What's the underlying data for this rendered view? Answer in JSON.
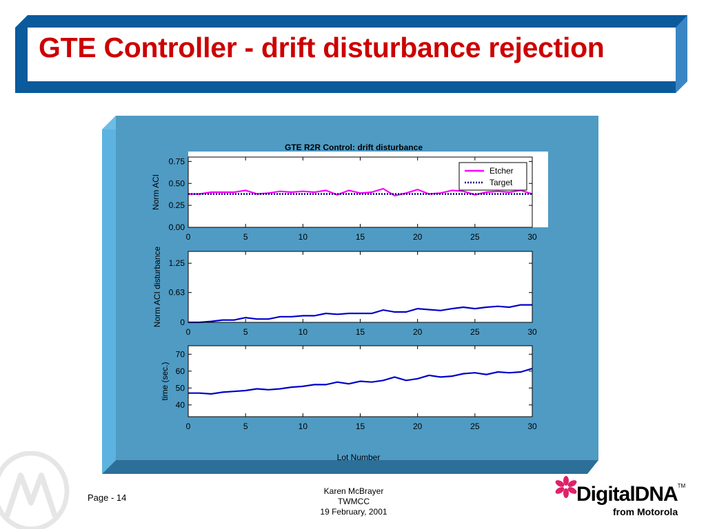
{
  "slide": {
    "title": "GTE Controller - drift disturbance rejection",
    "page_label": "Page - 14",
    "footer": {
      "author": "Karen McBrayer",
      "org": "TWMCC",
      "date": "19 February, 2001"
    },
    "brand": {
      "main": "DigitalDNA",
      "tm": "TM",
      "sub": "from Motorola"
    },
    "colors": {
      "title": "#cc0000",
      "frame_blue": "#0a5a9c",
      "panel_blue": "#4f9bc4",
      "panel_edge_light": "#5cb3e0",
      "panel_edge_dark": "#2c6f98",
      "asterisk": "#e0206a"
    }
  },
  "chart_data": {
    "type": "line",
    "title": "GTE R2R Control: drift disturbance",
    "xlabel": "Lot Number",
    "x": [
      0,
      1,
      2,
      3,
      4,
      5,
      6,
      7,
      8,
      9,
      10,
      11,
      12,
      13,
      14,
      15,
      16,
      17,
      18,
      19,
      20,
      21,
      22,
      23,
      24,
      25,
      26,
      27,
      28,
      29,
      30
    ],
    "x_ticks": [
      "0",
      "5",
      "10",
      "15",
      "20",
      "25",
      "30"
    ],
    "xlim": [
      0,
      30
    ],
    "subplots": [
      {
        "ylabel": "Norm ACI",
        "ylim": [
          0,
          0.8
        ],
        "y_ticks": [
          "0.00",
          "0.25",
          "0.50",
          "0.75"
        ],
        "y_tick_values": [
          0,
          0.25,
          0.5,
          0.75
        ],
        "legend": "top-right",
        "series": [
          {
            "name": "Etcher",
            "color": "#ff00ff",
            "style": "solid",
            "values": [
              0.38,
              0.38,
              0.4,
              0.4,
              0.4,
              0.42,
              0.38,
              0.39,
              0.41,
              0.4,
              0.41,
              0.4,
              0.42,
              0.37,
              0.42,
              0.39,
              0.4,
              0.44,
              0.36,
              0.39,
              0.43,
              0.38,
              0.39,
              0.42,
              0.41,
              0.37,
              0.4,
              0.41,
              0.4,
              0.42,
              0.38
            ]
          },
          {
            "name": "Target",
            "color": "#000080",
            "style": "dotted",
            "values": [
              0.38,
              0.38,
              0.38,
              0.38,
              0.38,
              0.38,
              0.38,
              0.38,
              0.38,
              0.38,
              0.38,
              0.38,
              0.38,
              0.38,
              0.38,
              0.38,
              0.38,
              0.38,
              0.38,
              0.38,
              0.38,
              0.38,
              0.38,
              0.38,
              0.38,
              0.38,
              0.38,
              0.38,
              0.38,
              0.38,
              0.38
            ]
          }
        ]
      },
      {
        "ylabel": "Norm ACI disturbance",
        "ylim": [
          0,
          1.5
        ],
        "y_ticks": [
          "0",
          "0.63",
          "1.25"
        ],
        "y_tick_values": [
          0,
          0.63,
          1.25
        ],
        "series": [
          {
            "color": "#0000cc",
            "style": "solid",
            "values": [
              0.0,
              0.0,
              0.02,
              0.05,
              0.05,
              0.1,
              0.07,
              0.07,
              0.12,
              0.12,
              0.14,
              0.14,
              0.19,
              0.17,
              0.19,
              0.19,
              0.19,
              0.26,
              0.22,
              0.22,
              0.29,
              0.27,
              0.25,
              0.29,
              0.32,
              0.29,
              0.32,
              0.34,
              0.32,
              0.37,
              0.37
            ]
          }
        ]
      },
      {
        "ylabel": "time (sec.)",
        "ylim": [
          33,
          75
        ],
        "y_ticks": [
          "40",
          "50",
          "60",
          "70"
        ],
        "y_tick_values": [
          40,
          50,
          60,
          70
        ],
        "series": [
          {
            "color": "#0000cc",
            "style": "solid",
            "values": [
              47.0,
              47.0,
              46.5,
              47.5,
              48.0,
              48.5,
              49.5,
              49.0,
              49.5,
              50.5,
              51.0,
              52.0,
              52.0,
              53.5,
              52.5,
              54.0,
              53.5,
              54.5,
              56.5,
              54.5,
              55.5,
              57.5,
              56.5,
              57.0,
              58.5,
              59.0,
              58.0,
              59.5,
              59.0,
              59.5,
              61.5
            ]
          }
        ]
      }
    ]
  }
}
